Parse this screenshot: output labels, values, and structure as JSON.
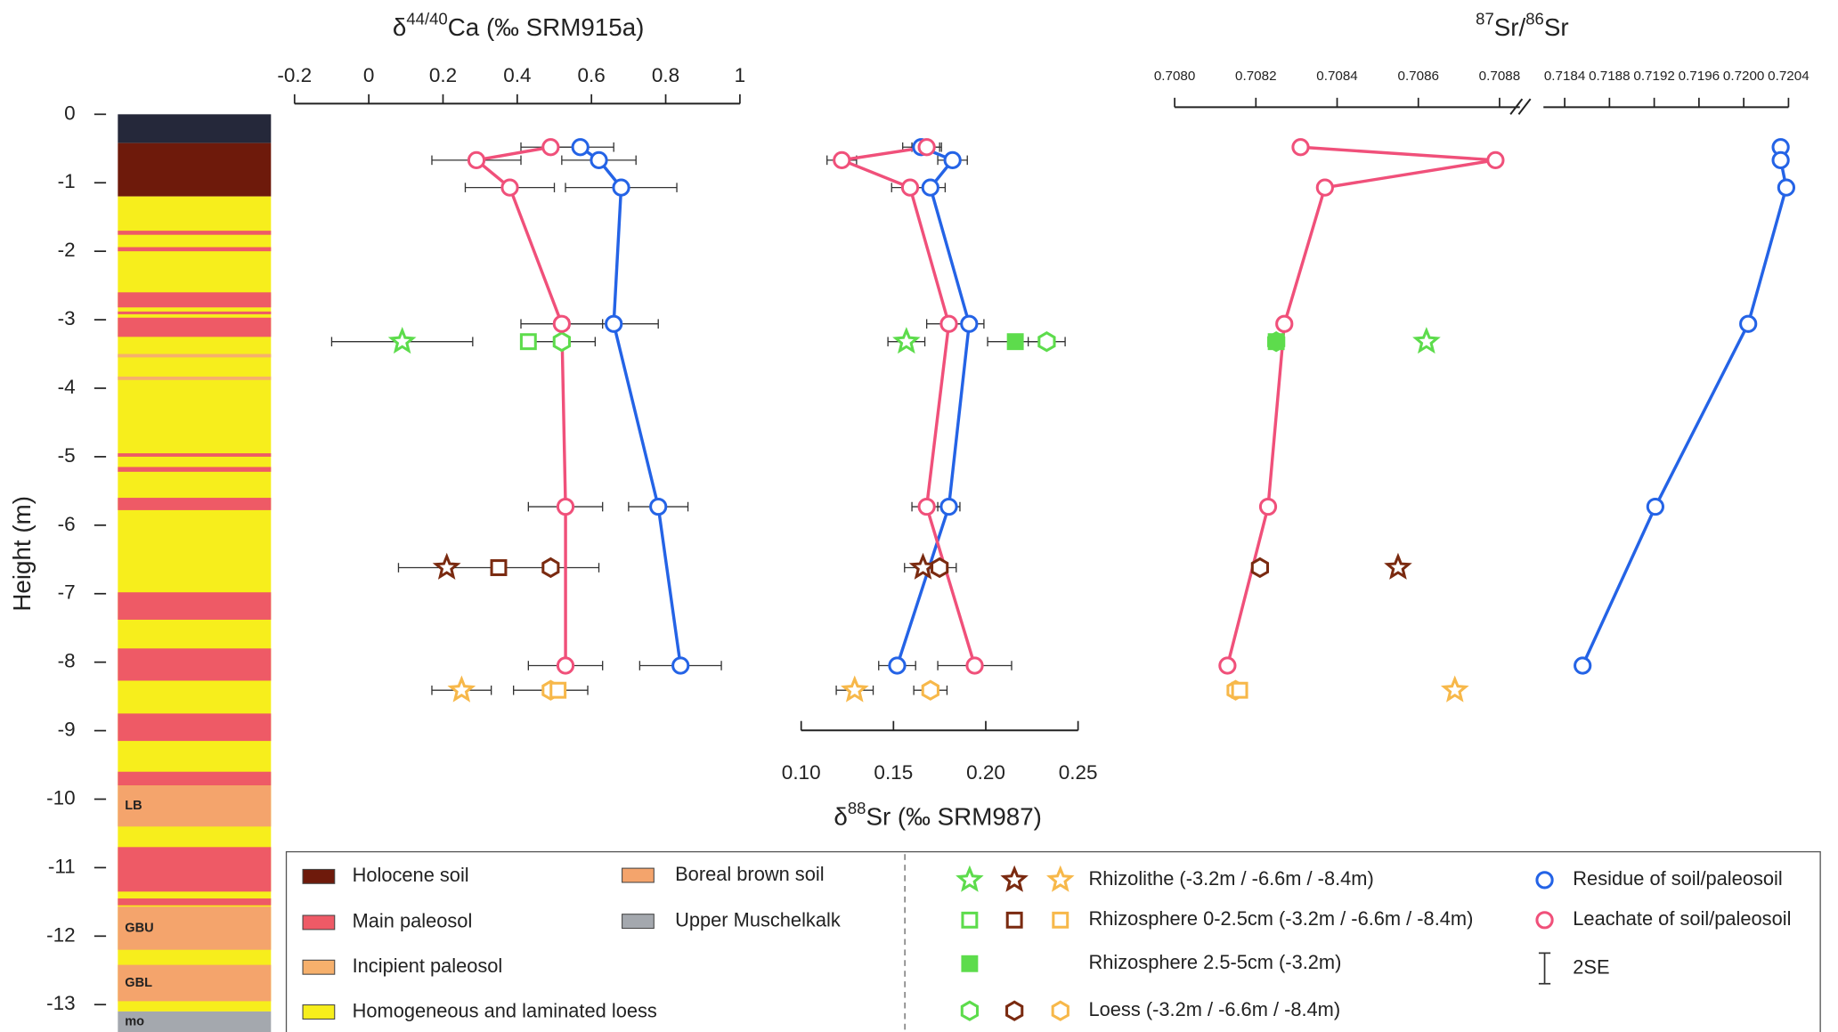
{
  "chart_data": [
    {
      "type": "column",
      "ylabel": "Height (m)",
      "ylim": [
        -13.4,
        0
      ],
      "yticks": [
        0,
        -1,
        -2,
        -3,
        -4,
        -5,
        -6,
        -7,
        -8,
        -9,
        -10,
        -11,
        -12,
        -13
      ],
      "layers": [
        {
          "top": 0,
          "bottom": -0.42,
          "color": "#25283a"
        },
        {
          "top": -0.42,
          "bottom": -1.2,
          "unit": 0
        },
        {
          "top": -1.2,
          "bottom": -13.1,
          "unit": 3
        },
        {
          "top": -1.7,
          "bottom": -1.76,
          "unit": 1
        },
        {
          "top": -1.94,
          "bottom": -2.0,
          "unit": 1
        },
        {
          "top": -2.6,
          "bottom": -2.82,
          "unit": 1
        },
        {
          "top": -2.88,
          "bottom": -2.92,
          "unit": 1
        },
        {
          "top": -2.97,
          "bottom": -3.25,
          "unit": 1
        },
        {
          "top": -3.5,
          "bottom": -3.55,
          "unit": 2
        },
        {
          "top": -3.83,
          "bottom": -3.88,
          "unit": 2
        },
        {
          "top": -4.95,
          "bottom": -5.0,
          "unit": 1
        },
        {
          "top": -5.15,
          "bottom": -5.22,
          "unit": 1
        },
        {
          "top": -5.6,
          "bottom": -5.78,
          "unit": 1
        },
        {
          "top": -6.98,
          "bottom": -7.38,
          "unit": 1
        },
        {
          "top": -7.8,
          "bottom": -8.27,
          "unit": 1
        },
        {
          "top": -8.75,
          "bottom": -9.15,
          "unit": 1
        },
        {
          "top": -9.6,
          "bottom": -9.8,
          "unit": 1
        },
        {
          "top": -9.8,
          "bottom": -10.4,
          "unit": 4,
          "label": "LB"
        },
        {
          "top": -10.7,
          "bottom": -11.35,
          "unit": 1
        },
        {
          "top": -11.45,
          "bottom": -11.55,
          "unit": 1
        },
        {
          "top": -11.57,
          "bottom": -12.2,
          "unit": 4,
          "label": "GBU"
        },
        {
          "top": -12.42,
          "bottom": -12.95,
          "unit": 4,
          "label": "GBL"
        },
        {
          "top": -13.1,
          "bottom": -13.4,
          "unit": 5,
          "label": "mo"
        }
      ],
      "legend": {
        "units": [
          {
            "name": "Holocene soil",
            "color": "#6e1a0b"
          },
          {
            "name": "Main paleosol",
            "color": "#ee5a66"
          },
          {
            "name": "Incipient paleosol",
            "color": "#f6b06c"
          },
          {
            "name": "Homogeneous and laminated loess",
            "color": "#f7ee1c"
          },
          {
            "name": "Boreal brown soil",
            "color": "#f4a46c"
          },
          {
            "name": "Upper Muschelkalk",
            "color": "#a4a8ae"
          }
        ],
        "symbols": [
          {
            "label": "Rhizolithe (-3.2m / -6.6m / -8.4m)",
            "marker": "star",
            "colors": [
              "#5ddc4c",
              "#7a2a10",
              "#f7b84a"
            ]
          },
          {
            "label": "Rhizosphere 0-2.5cm (-3.2m / -6.6m / -8.4m)",
            "marker": "square",
            "colors": [
              "#5ddc4c",
              "#7a2a10",
              "#f7b84a"
            ]
          },
          {
            "label": "Rhizosphere 2.5-5cm (-3.2m)",
            "marker": "fsquare",
            "colors": [
              "#5ddc4c"
            ]
          },
          {
            "label": "Loess (-3.2m / -6.6m / -8.4m)",
            "marker": "hexagon",
            "colors": [
              "#5ddc4c",
              "#7a2a10",
              "#f7b84a"
            ]
          }
        ],
        "series": [
          {
            "label": "Residue of soil/paleosoil",
            "marker": "circle",
            "color": "#2463e6"
          },
          {
            "label": "Leachate of soil/paleosoil",
            "marker": "circle",
            "color": "#f0507a"
          },
          {
            "label": "2SE",
            "marker": "errorbar",
            "color": "#333333"
          }
        ]
      }
    },
    {
      "type": "profile",
      "title": [
        {
          "text": "δ"
        },
        {
          "text": "44/40",
          "sup": true
        },
        {
          "text": "Ca (‰ SRM915a)"
        }
      ],
      "xlim": [
        -0.2,
        1
      ],
      "xticks": [
        -0.2,
        0,
        0.2,
        0.4,
        0.6,
        0.8,
        1
      ],
      "heights": [
        -0.48,
        -0.67,
        -1.07,
        -3.06,
        -5.73,
        -8.05
      ],
      "series": [
        {
          "color": "#2463e6",
          "x": [
            0.57,
            0.62,
            0.68,
            0.66,
            0.78,
            0.84
          ],
          "errors": [
            0.09,
            0.1,
            0.15,
            0.12,
            0.08,
            0.11
          ]
        },
        {
          "color": "#f0507a",
          "x": [
            0.49,
            0.29,
            0.38,
            0.52,
            0.53,
            0.53
          ],
          "errors": [
            0.08,
            0.12,
            0.12,
            0.11,
            0.1,
            0.1
          ]
        }
      ],
      "points": [
        {
          "x": 0.09,
          "y": -3.32,
          "err": 0.19,
          "marker": "star",
          "color": "#5ddc4c"
        },
        {
          "x": 0.43,
          "y": -3.32,
          "err": null,
          "marker": "square",
          "color": "#5ddc4c"
        },
        {
          "x": 0.52,
          "y": -3.32,
          "err": 0.09,
          "marker": "hexagon",
          "color": "#5ddc4c"
        },
        {
          "x": 0.21,
          "y": -6.62,
          "err": 0.13,
          "marker": "star",
          "color": "#7a2a10"
        },
        {
          "x": 0.35,
          "y": -6.62,
          "err": null,
          "marker": "square",
          "color": "#7a2a10"
        },
        {
          "x": 0.49,
          "y": -6.62,
          "err": 0.13,
          "marker": "hexagon",
          "color": "#7a2a10"
        },
        {
          "x": 0.25,
          "y": -8.41,
          "err": 0.08,
          "marker": "star",
          "color": "#f7b84a"
        },
        {
          "x": 0.49,
          "y": -8.41,
          "err": 0.1,
          "marker": "hexagon",
          "color": "#f7b84a"
        },
        {
          "x": 0.51,
          "y": -8.41,
          "err": null,
          "marker": "square",
          "color": "#f7b84a"
        }
      ]
    },
    {
      "type": "profile",
      "title": [
        {
          "text": "δ"
        },
        {
          "text": "88",
          "sup": true
        },
        {
          "text": "Sr (‰ SRM987)"
        }
      ],
      "xlim": [
        0.1,
        0.25
      ],
      "xticks": [
        {
          "value": 0.1,
          "label": "0.10"
        },
        0.15,
        {
          "value": 0.2,
          "label": "0.20"
        },
        0.25
      ],
      "heights": [
        -0.48,
        -0.67,
        -1.07,
        -3.06,
        -5.73,
        -8.05
      ],
      "series": [
        {
          "color": "#2463e6",
          "x": [
            0.165,
            0.182,
            0.17,
            0.191,
            0.18,
            0.152
          ],
          "errors": [
            0.01,
            0.008,
            0.008,
            0.008,
            0.006,
            0.01
          ]
        },
        {
          "color": "#f0507a",
          "x": [
            0.168,
            0.122,
            0.159,
            0.18,
            0.168,
            0.194
          ],
          "errors": [
            0.008,
            0.008,
            0.01,
            0.012,
            0.008,
            0.02
          ]
        }
      ],
      "points": [
        {
          "x": 0.157,
          "y": -3.32,
          "err": 0.01,
          "marker": "star",
          "color": "#5ddc4c"
        },
        {
          "x": 0.216,
          "y": -3.32,
          "err": 0.015,
          "marker": "fsquare",
          "color": "#5ddc4c"
        },
        {
          "x": 0.233,
          "y": -3.32,
          "err": 0.01,
          "marker": "hexagon",
          "color": "#5ddc4c"
        },
        {
          "x": 0.166,
          "y": -6.62,
          "err": 0.01,
          "marker": "star",
          "color": "#7a2a10"
        },
        {
          "x": 0.175,
          "y": -6.62,
          "err": 0.009,
          "marker": "hexagon",
          "color": "#7a2a10"
        },
        {
          "x": 0.129,
          "y": -8.41,
          "err": 0.01,
          "marker": "star",
          "color": "#f7b84a"
        },
        {
          "x": 0.17,
          "y": -8.41,
          "err": 0.009,
          "marker": "hexagon",
          "color": "#f7b84a"
        }
      ]
    },
    {
      "type": "profile",
      "title": [
        {
          "text": "87",
          "sup": true
        },
        {
          "text": "Sr/"
        },
        {
          "text": "86",
          "sup": true
        },
        {
          "text": "Sr"
        }
      ],
      "xlim": [
        0.708,
        0.70885
      ],
      "xticks": [
        {
          "value": 0.708,
          "label": "0.7080"
        },
        {
          "value": 0.7082,
          "label": "0.7082"
        },
        {
          "value": 0.7084,
          "label": "0.7084"
        },
        {
          "value": 0.7086,
          "label": "0.7086"
        },
        {
          "value": 0.7088,
          "label": "0.7088"
        }
      ],
      "x2lim": [
        0.71821,
        0.7204
      ],
      "x2ticks": [
        0.7184,
        0.7188,
        0.7192,
        0.7196,
        {
          "value": 0.72,
          "label": "0.7200"
        },
        0.7204
      ],
      "heights": [
        -0.48,
        -0.67,
        -1.07,
        -3.06,
        -5.73,
        -8.05
      ],
      "series": [
        {
          "color": "#2463e6",
          "axis": "x2",
          "x": [
            0.72033,
            0.72033,
            0.72038,
            0.72004,
            0.71921,
            0.71856
          ]
        },
        {
          "color": "#f0507a",
          "x": [
            0.70831,
            0.70879,
            0.70837,
            0.70827,
            0.70823,
            0.70813
          ]
        }
      ],
      "points": [
        {
          "x": 0.70862,
          "y": -3.32,
          "marker": "star",
          "color": "#5ddc4c"
        },
        {
          "x": 0.70825,
          "y": -3.32,
          "marker": "hexagon",
          "color": "#5ddc4c"
        },
        {
          "x": 0.70825,
          "y": -3.32,
          "marker": "fsquare",
          "color": "#5ddc4c"
        },
        {
          "x": 0.70855,
          "y": -6.62,
          "marker": "star",
          "color": "#7a2a10"
        },
        {
          "x": 0.70821,
          "y": -6.62,
          "marker": "hexagon",
          "color": "#7a2a10"
        },
        {
          "x": 0.70869,
          "y": -8.41,
          "marker": "star",
          "color": "#f7b84a"
        },
        {
          "x": 0.70815,
          "y": -8.41,
          "marker": "hexagon",
          "color": "#f7b84a"
        },
        {
          "x": 0.70816,
          "y": -8.41,
          "marker": "square",
          "color": "#f7b84a"
        }
      ]
    }
  ]
}
